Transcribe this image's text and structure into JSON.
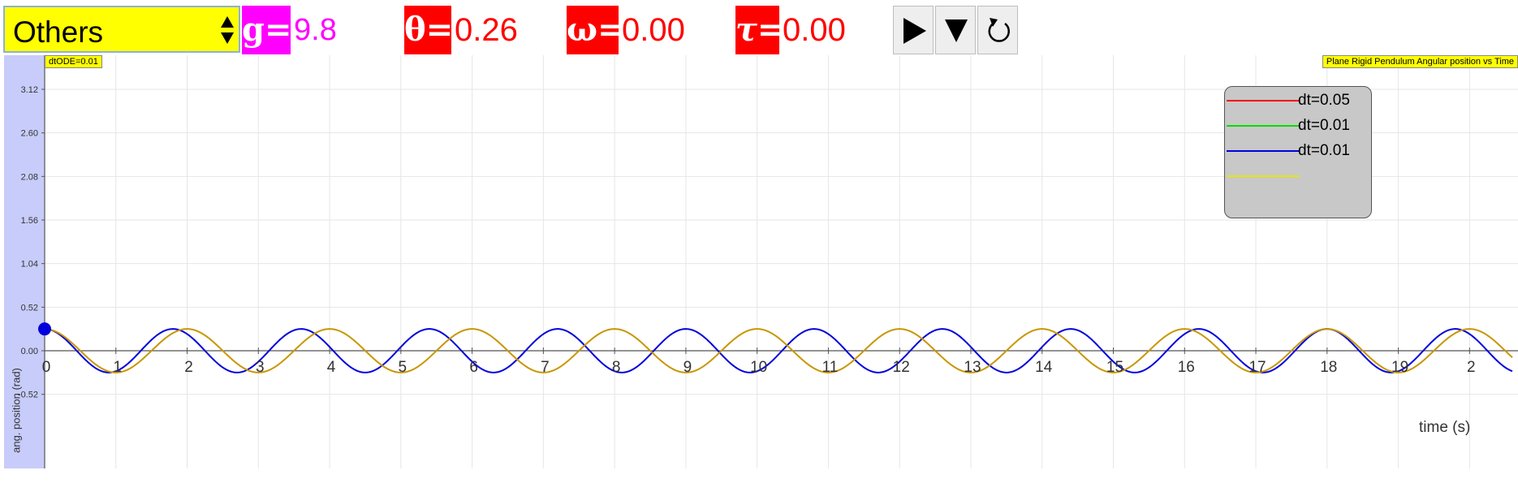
{
  "toolbar": {
    "select_value": "Others",
    "g_symbol": "g=",
    "g_value": "9.80",
    "theta_symbol": "θ=",
    "theta_value": "0.26",
    "omega_symbol": "ω=",
    "omega_value": "0.00",
    "tau_symbol": "τ=",
    "tau_value": "0.00",
    "play_icon": "play-icon",
    "dropdown_icon": "triangle-down-icon",
    "reset_icon": "reset-icon"
  },
  "colors": {
    "select_bg": "#ffff00",
    "g_accent": "#ff00ff",
    "red_accent": "#ff0000",
    "y_strip": "#c8ccfa",
    "series_blue": "#0000dd",
    "series_gold": "#c89600"
  },
  "tags": {
    "dt_ode": "dtODE=0.01",
    "plot_title": "Plane Rigid Pendulum Angular position vs Time"
  },
  "chart_data": {
    "type": "line",
    "title": "Plane Rigid Pendulum Angular position vs Time",
    "xlabel": "time (s)",
    "ylabel": "ang. position (rad)",
    "xlim": [
      0,
      20.6
    ],
    "ylim": [
      -0.62,
      3.45
    ],
    "x_ticks": [
      "0",
      "1",
      "2",
      "3",
      "4",
      "5",
      "6",
      "7",
      "8",
      "9",
      "10",
      "11",
      "12",
      "13",
      "14",
      "15",
      "16",
      "17",
      "18",
      "19",
      "2"
    ],
    "y_ticks": [
      "3.12",
      "2.60",
      "2.08",
      "1.56",
      "1.04",
      "0.52",
      "0.00",
      "-0.52"
    ],
    "grid": true,
    "legend_position": "top-right",
    "legend": [
      {
        "label": "dt=0.05",
        "color": "#ff0000"
      },
      {
        "label": "dt=0.01",
        "color": "#00dd00"
      },
      {
        "label": "dt=0.01",
        "color": "#0000dd"
      },
      {
        "label": "",
        "color": "#e6e600"
      }
    ],
    "series": [
      {
        "color": "#0000dd",
        "amplitude": 0.26,
        "period": 1.8,
        "x_range": [
          0,
          20.6
        ]
      },
      {
        "color": "#c89600",
        "amplitude": 0.26,
        "period": 2.0,
        "x_range": [
          0,
          20.6
        ]
      }
    ],
    "marker": {
      "x": 0,
      "y": 0.26,
      "color": "#0000dd"
    }
  }
}
